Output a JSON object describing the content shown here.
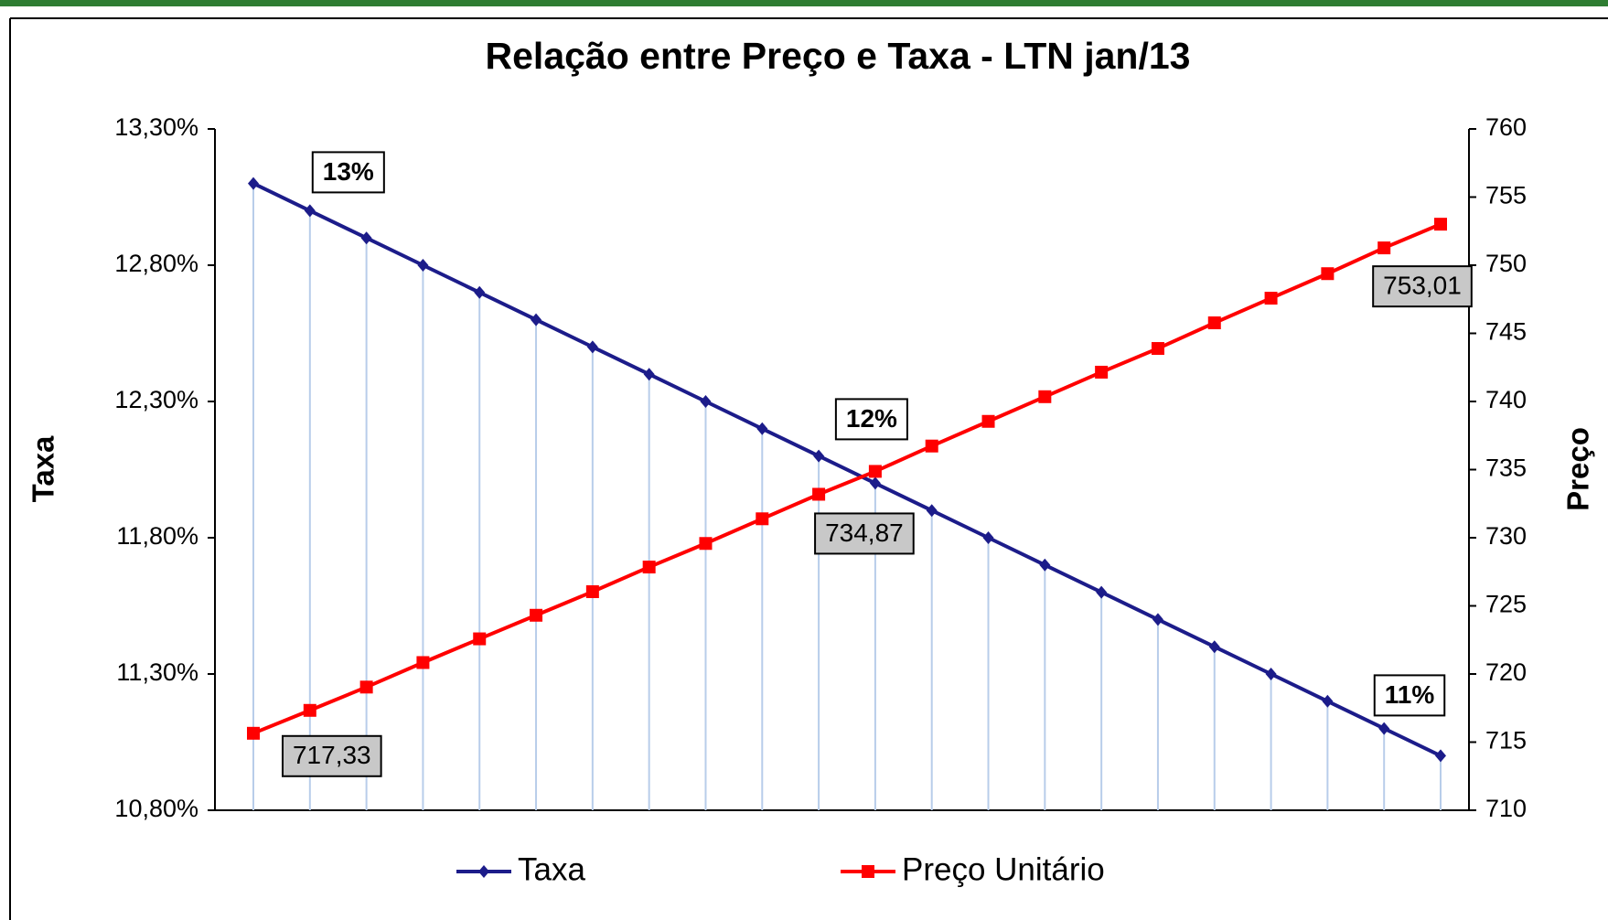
{
  "chart_data": {
    "type": "line",
    "title": "Relação entre Preço e Taxa - LTN jan/13",
    "ylabel": "Taxa",
    "y2label": "Preço",
    "ylim": [
      10.8,
      13.3
    ],
    "yticks": [
      {
        "value": 10.8,
        "label": "10,80%"
      },
      {
        "value": 11.3,
        "label": "11,30%"
      },
      {
        "value": 11.8,
        "label": "11,80%"
      },
      {
        "value": 12.3,
        "label": "12,30%"
      },
      {
        "value": 12.8,
        "label": "12,80%"
      },
      {
        "value": 13.3,
        "label": "13,30%"
      }
    ],
    "y2lim": [
      710,
      760
    ],
    "y2ticks": [
      710,
      715,
      720,
      725,
      730,
      735,
      740,
      745,
      750,
      755,
      760
    ],
    "drop_lines": true,
    "series": [
      {
        "name": "Taxa",
        "color": "#1c1c8a",
        "marker": "diamond",
        "values": [
          13.1,
          13.0,
          12.9,
          12.8,
          12.7,
          12.6,
          12.5,
          12.4,
          12.3,
          12.2,
          12.1,
          12.0,
          11.9,
          11.8,
          11.7,
          11.6,
          11.5,
          11.4,
          11.3,
          11.2,
          11.1,
          11.0
        ],
        "value_labels": [
          null,
          "13%",
          null,
          null,
          null,
          null,
          null,
          null,
          null,
          null,
          null,
          "12%",
          null,
          null,
          null,
          null,
          null,
          null,
          null,
          null,
          null,
          "11%"
        ]
      },
      {
        "name": "Preço Unitário",
        "color": "#ff0000",
        "marker": "square",
        "axis": "y2",
        "values": [
          715.65,
          717.33,
          719.04,
          720.84,
          722.58,
          724.31,
          726.04,
          727.85,
          729.58,
          731.39,
          733.19,
          734.87,
          736.73,
          738.54,
          740.35,
          742.15,
          743.89,
          745.77,
          747.58,
          749.38,
          751.27,
          753.01
        ],
        "value_labels": [
          null,
          "717,33",
          null,
          null,
          null,
          null,
          null,
          null,
          null,
          null,
          null,
          "734,87",
          null,
          null,
          null,
          null,
          null,
          null,
          null,
          null,
          null,
          "753,01"
        ]
      }
    ]
  }
}
